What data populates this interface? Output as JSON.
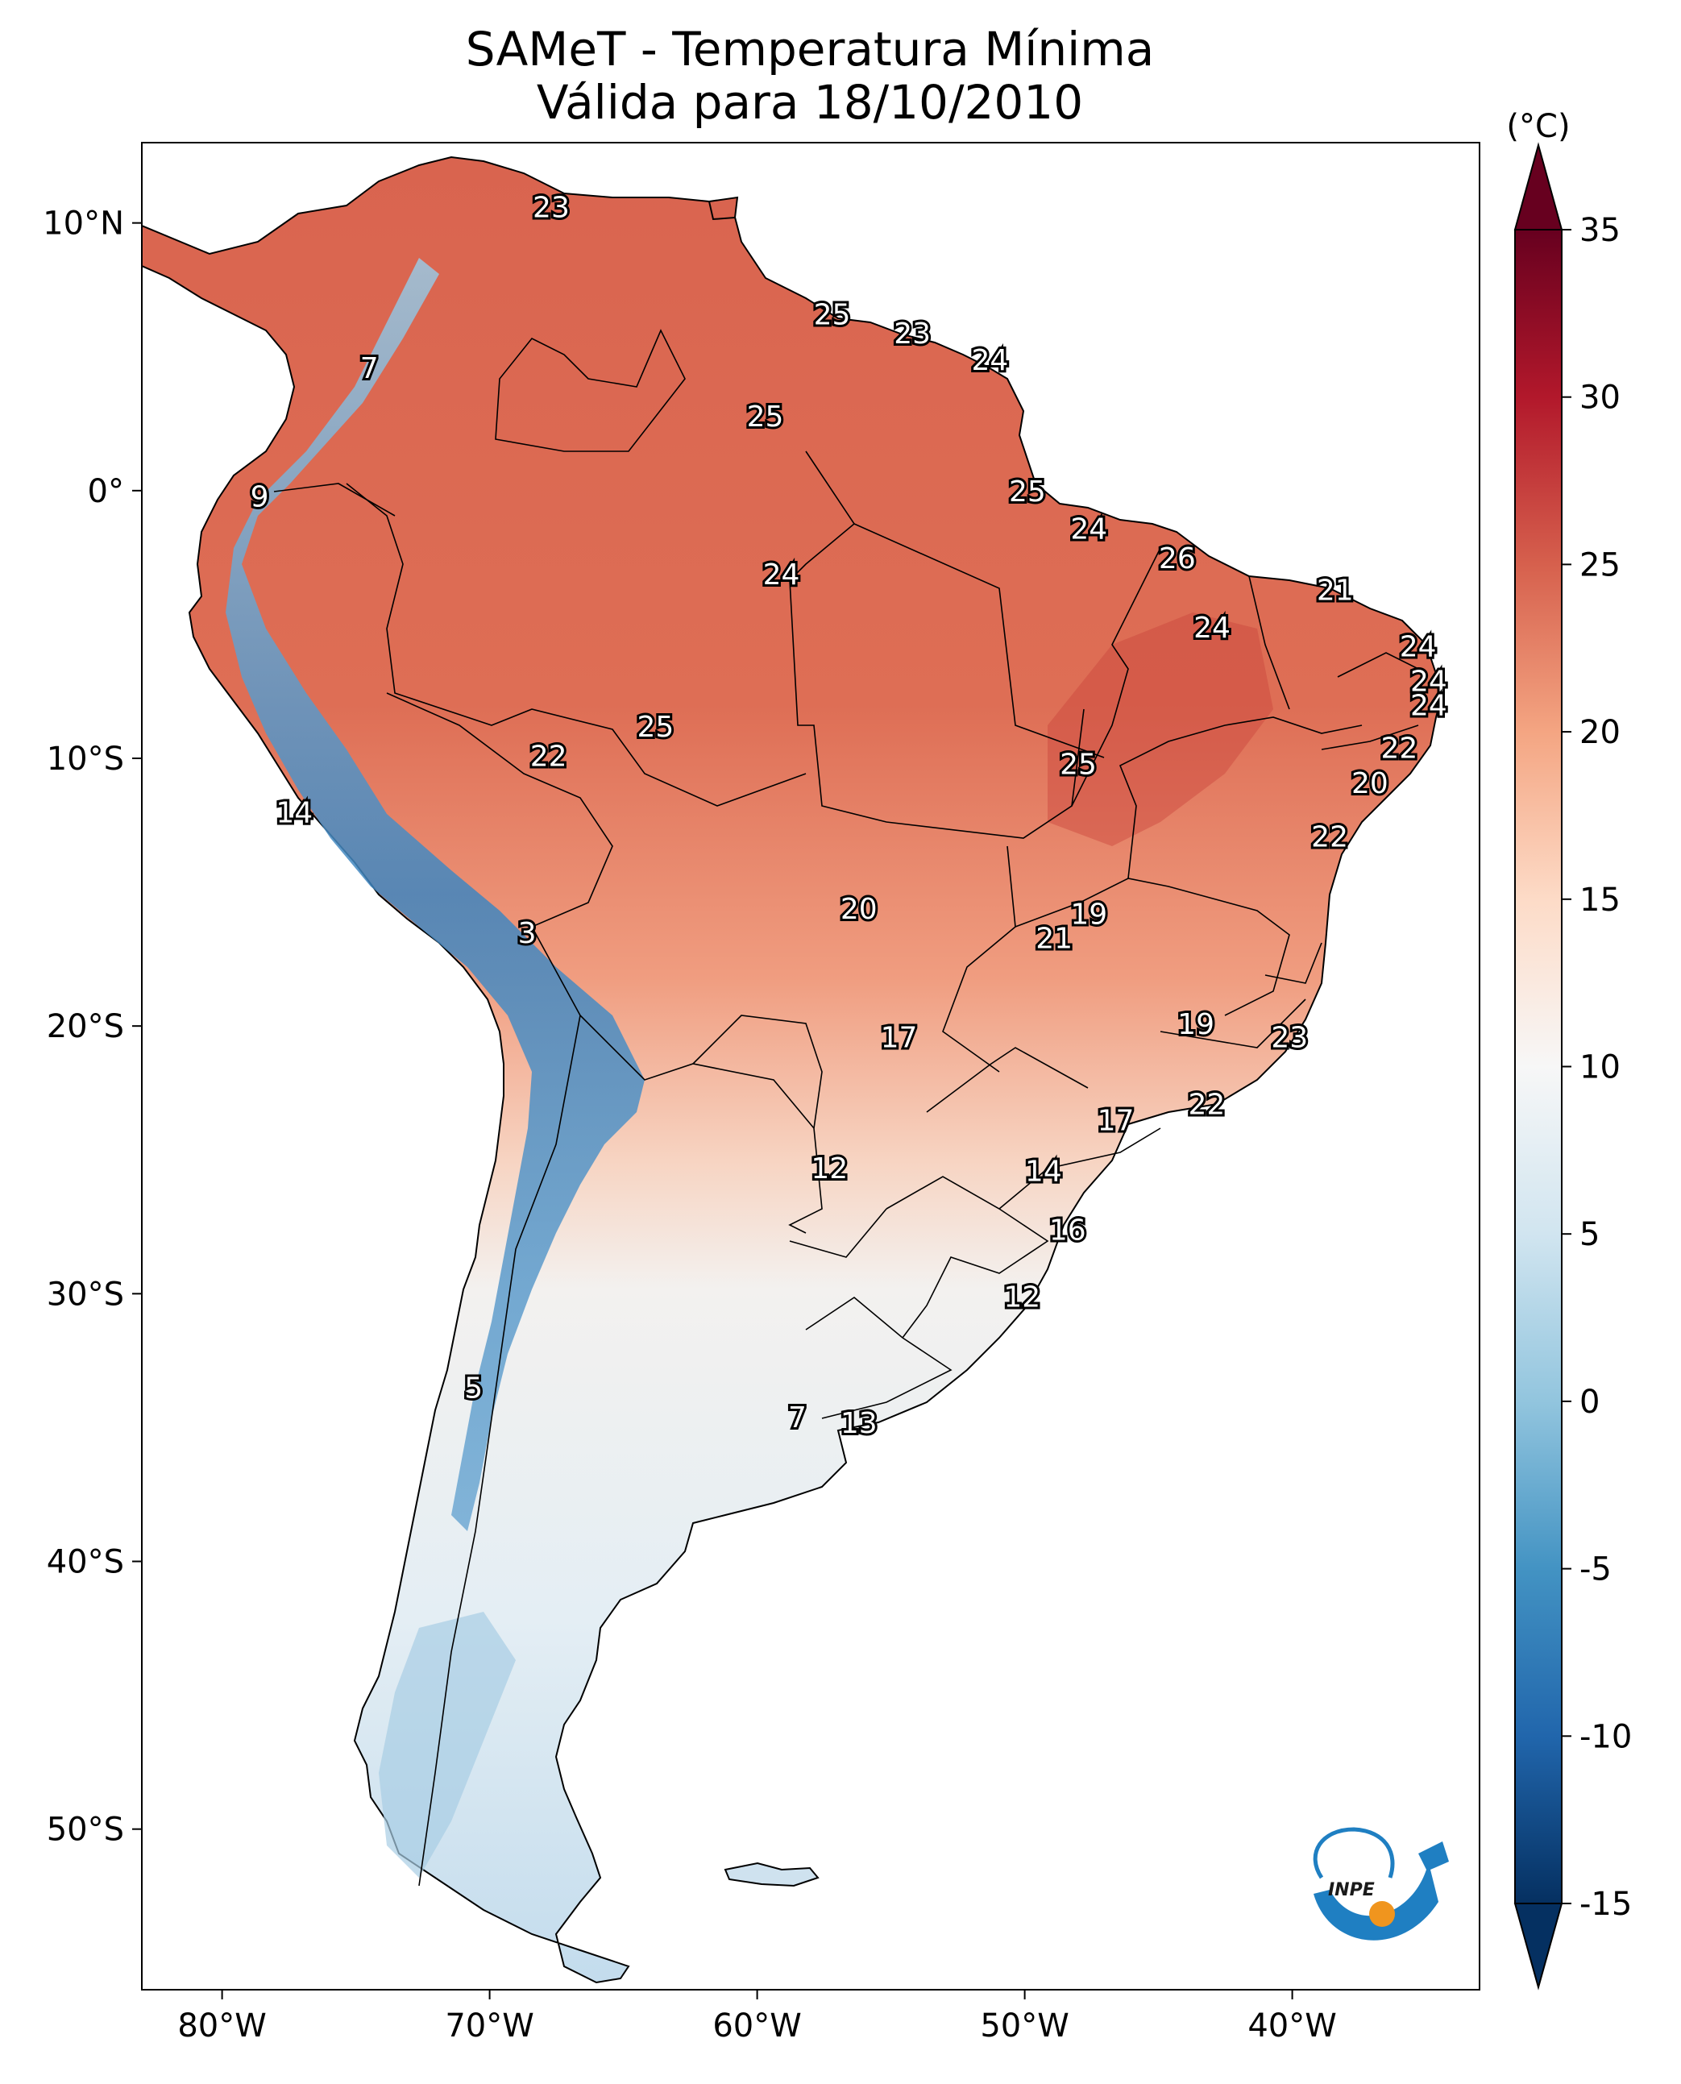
{
  "title": {
    "line1": "SAMeT - Temperatura Mínima",
    "line2": "Válida para 18/10/2010"
  },
  "map": {
    "lon_range": [
      -83,
      -33
    ],
    "lat_range": [
      -56,
      13
    ],
    "x_ticks": [
      {
        "lon": -80,
        "label": "80°W"
      },
      {
        "lon": -70,
        "label": "70°W"
      },
      {
        "lon": -60,
        "label": "60°W"
      },
      {
        "lon": -50,
        "label": "50°W"
      },
      {
        "lon": -40,
        "label": "40°W"
      }
    ],
    "y_ticks": [
      {
        "lat": 10,
        "label": "10°N"
      },
      {
        "lat": 0,
        "label": "0°"
      },
      {
        "lat": -10,
        "label": "10°S"
      },
      {
        "lat": -20,
        "label": "20°S"
      },
      {
        "lat": -30,
        "label": "30°S"
      },
      {
        "lat": -40,
        "label": "40°S"
      },
      {
        "lat": -50,
        "label": "50°S"
      }
    ],
    "station_labels": [
      {
        "lon": -67.7,
        "lat": 10.6,
        "value": "23"
      },
      {
        "lon": -57.2,
        "lat": 6.6,
        "value": "25"
      },
      {
        "lon": -54.2,
        "lat": 5.9,
        "value": "23"
      },
      {
        "lon": -51.3,
        "lat": 4.9,
        "value": "24"
      },
      {
        "lon": -74.5,
        "lat": 4.6,
        "value": "7"
      },
      {
        "lon": -59.7,
        "lat": 2.8,
        "value": "25"
      },
      {
        "lon": -78.6,
        "lat": -0.2,
        "value": "9"
      },
      {
        "lon": -49.9,
        "lat": 0.0,
        "value": "25"
      },
      {
        "lon": -47.6,
        "lat": -1.4,
        "value": "24"
      },
      {
        "lon": -44.3,
        "lat": -2.5,
        "value": "26"
      },
      {
        "lon": -59.1,
        "lat": -3.1,
        "value": "24"
      },
      {
        "lon": -38.4,
        "lat": -3.7,
        "value": "21"
      },
      {
        "lon": -43.0,
        "lat": -5.1,
        "value": "24"
      },
      {
        "lon": -35.3,
        "lat": -5.8,
        "value": "24"
      },
      {
        "lon": -34.9,
        "lat": -7.1,
        "value": "24"
      },
      {
        "lon": -34.9,
        "lat": -8.0,
        "value": "24"
      },
      {
        "lon": -63.8,
        "lat": -8.8,
        "value": "25"
      },
      {
        "lon": -36.0,
        "lat": -9.6,
        "value": "22"
      },
      {
        "lon": -67.8,
        "lat": -9.9,
        "value": "22"
      },
      {
        "lon": -48.0,
        "lat": -10.2,
        "value": "25"
      },
      {
        "lon": -37.1,
        "lat": -10.9,
        "value": "20"
      },
      {
        "lon": -77.3,
        "lat": -12.0,
        "value": "14"
      },
      {
        "lon": -38.6,
        "lat": -12.9,
        "value": "22"
      },
      {
        "lon": -56.2,
        "lat": -15.6,
        "value": "20"
      },
      {
        "lon": -47.6,
        "lat": -15.8,
        "value": "19"
      },
      {
        "lon": -48.9,
        "lat": -16.7,
        "value": "21"
      },
      {
        "lon": -68.6,
        "lat": -16.5,
        "value": "3"
      },
      {
        "lon": -43.6,
        "lat": -19.9,
        "value": "19"
      },
      {
        "lon": -40.1,
        "lat": -20.4,
        "value": "23"
      },
      {
        "lon": -54.7,
        "lat": -20.4,
        "value": "17"
      },
      {
        "lon": -43.2,
        "lat": -22.9,
        "value": "22"
      },
      {
        "lon": -46.6,
        "lat": -23.5,
        "value": "17"
      },
      {
        "lon": -57.3,
        "lat": -25.3,
        "value": "12"
      },
      {
        "lon": -49.3,
        "lat": -25.4,
        "value": "14"
      },
      {
        "lon": -48.4,
        "lat": -27.6,
        "value": "16"
      },
      {
        "lon": -50.1,
        "lat": -30.1,
        "value": "12"
      },
      {
        "lon": -70.6,
        "lat": -33.5,
        "value": "5"
      },
      {
        "lon": -58.5,
        "lat": -34.6,
        "value": "7"
      },
      {
        "lon": -56.2,
        "lat": -34.8,
        "value": "13"
      }
    ]
  },
  "colorbar": {
    "unit": "(°C)",
    "min": -15,
    "max": 35,
    "ticks": [
      {
        "value": 35,
        "label": "35"
      },
      {
        "value": 30,
        "label": "30"
      },
      {
        "value": 25,
        "label": "25"
      },
      {
        "value": 20,
        "label": "20"
      },
      {
        "value": 15,
        "label": "15"
      },
      {
        "value": 10,
        "label": "10"
      },
      {
        "value": 5,
        "label": "5"
      },
      {
        "value": 0,
        "label": "0"
      },
      {
        "value": -5,
        "label": "-5"
      },
      {
        "value": -10,
        "label": "-10"
      },
      {
        "value": -15,
        "label": "-15"
      }
    ],
    "colors": [
      "#053061",
      "#2166ac",
      "#4393c3",
      "#92c5de",
      "#d1e5f0",
      "#f7f7f7",
      "#fddbc7",
      "#f4a582",
      "#d6604d",
      "#b2182b",
      "#67001f"
    ]
  },
  "logo": {
    "text": "INPE",
    "colors": {
      "blue": "#1f7fc2",
      "orange": "#f0951e"
    }
  }
}
